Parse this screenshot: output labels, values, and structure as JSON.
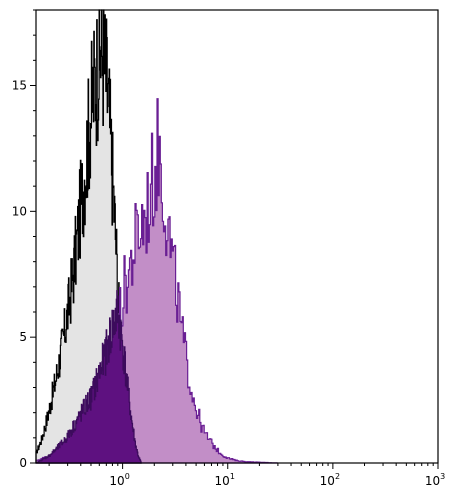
{
  "chart_data": {
    "type": "area",
    "title": "",
    "xlabel": "",
    "ylabel": "",
    "x_scale": "log",
    "xlim": [
      0.15,
      1000
    ],
    "ylim": [
      0,
      18
    ],
    "grid": false,
    "x_ticks": [
      {
        "value": 1,
        "base": "10",
        "exp": "0"
      },
      {
        "value": 10,
        "base": "10",
        "exp": "1"
      },
      {
        "value": 100,
        "base": "10",
        "exp": "2"
      },
      {
        "value": 1000,
        "base": "10",
        "exp": "3"
      }
    ],
    "y_ticks": [
      {
        "value": 0,
        "label": "0"
      },
      {
        "value": 5,
        "label": "5"
      },
      {
        "value": 10,
        "label": "10"
      },
      {
        "value": 15,
        "label": "15"
      }
    ],
    "series": [
      {
        "role": "control",
        "fill": "#e4e4e4",
        "stroke": "#000000",
        "x": [
          0.15,
          0.17,
          0.19,
          0.21,
          0.23,
          0.25,
          0.28,
          0.31,
          0.34,
          0.37,
          0.4,
          0.43,
          0.46,
          0.5,
          0.54,
          0.58,
          0.62,
          0.66,
          0.7,
          0.74,
          0.78,
          0.82,
          0.86,
          0.9,
          0.95,
          1.0,
          1.05,
          1.1,
          1.2,
          1.3,
          1.4,
          1.5
        ],
        "y": [
          0.4,
          1.0,
          1.8,
          2.6,
          3.4,
          4.2,
          5.4,
          6.6,
          7.9,
          9.2,
          10.6,
          11.8,
          13.0,
          14.5,
          15.6,
          16.3,
          17.0,
          16.5,
          15.6,
          14.3,
          12.5,
          10.8,
          9.0,
          7.0,
          5.0,
          3.2,
          2.0,
          1.2,
          0.5,
          0.2,
          0.1,
          0
        ]
      },
      {
        "role": "stained",
        "fill": "#c28ec7",
        "stroke": "#6a1f94",
        "x": [
          0.15,
          0.2,
          0.3,
          0.4,
          0.5,
          0.6,
          0.7,
          0.8,
          0.9,
          1.0,
          1.1,
          1.2,
          1.3,
          1.4,
          1.5,
          1.6,
          1.7,
          1.8,
          1.9,
          2.0,
          2.1,
          2.2,
          2.3,
          2.4,
          2.6,
          2.8,
          3.0,
          3.3,
          3.6,
          4.0,
          4.5,
          5.0,
          5.5,
          6.0,
          7.0,
          8.0,
          9.0,
          10,
          12,
          15,
          20,
          30
        ],
        "y": [
          0.1,
          0.3,
          0.8,
          1.3,
          1.9,
          2.6,
          3.6,
          4.7,
          5.8,
          6.9,
          7.6,
          8.3,
          9.0,
          9.4,
          9.8,
          10.0,
          10.4,
          11.0,
          11.5,
          12.0,
          12.6,
          13.0,
          12.2,
          11.5,
          10.2,
          9.0,
          8.0,
          6.8,
          5.4,
          4.2,
          3.0,
          2.2,
          1.6,
          1.2,
          0.8,
          0.5,
          0.3,
          0.2,
          0.1,
          0.05,
          0.03,
          0
        ]
      },
      {
        "role": "stained-gated",
        "fill": "#5e1180",
        "stroke": "#3c0b5c",
        "x": [
          0.15,
          0.2,
          0.25,
          0.3,
          0.35,
          0.4,
          0.45,
          0.5,
          0.55,
          0.6,
          0.7,
          0.8,
          0.9,
          1.0,
          1.1,
          1.2,
          1.3,
          1.4,
          1.5
        ],
        "y": [
          0,
          0.3,
          0.7,
          1.1,
          1.6,
          2.0,
          2.4,
          2.7,
          3.2,
          3.7,
          4.6,
          5.6,
          6.2,
          4.8,
          3.2,
          1.9,
          0.9,
          0.3,
          0
        ]
      }
    ]
  }
}
